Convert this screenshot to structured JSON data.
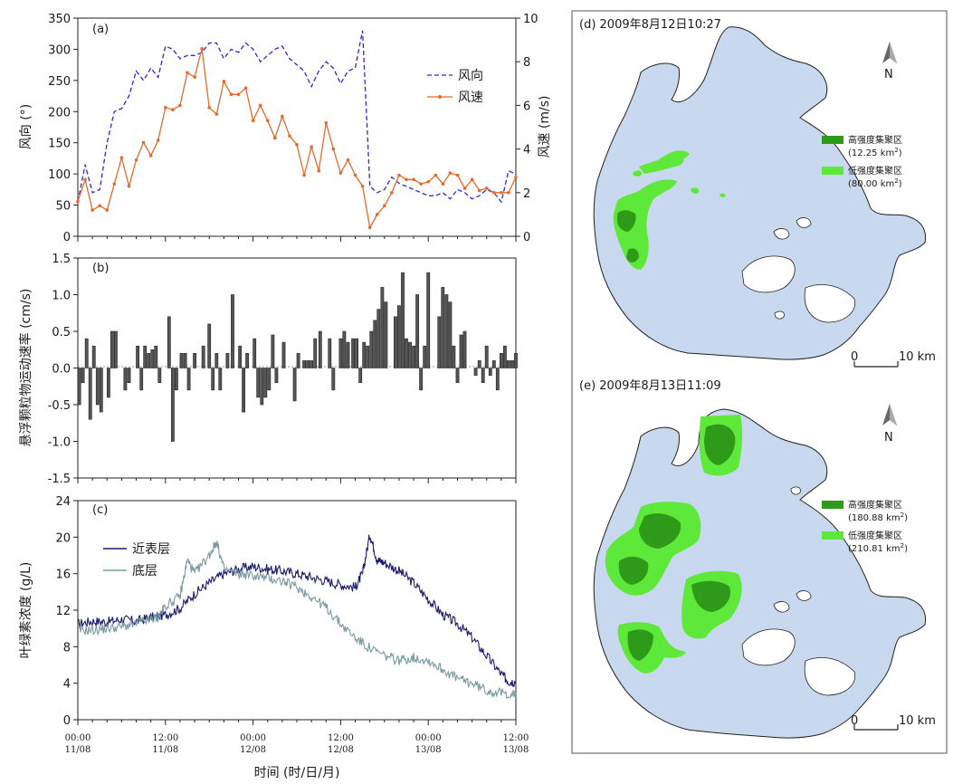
{
  "colors": {
    "wind_dir": "#2a2ad6",
    "wind_speed": "#e8692a",
    "bar_fill": "#555555",
    "near_surface": "#1a1a6e",
    "bottom": "#7a9aa0",
    "lake": "#c8d8ee",
    "high_cluster": "#2e9a1a",
    "low_cluster": "#5ee83a"
  },
  "x_axis": {
    "ticks": [
      {
        "t": "00:00",
        "d": "11/08"
      },
      {
        "t": "12:00",
        "d": "11/08"
      },
      {
        "t": "00:00",
        "d": "12/08"
      },
      {
        "t": "12:00",
        "d": "12/08"
      },
      {
        "t": "00:00",
        "d": "13/08"
      },
      {
        "t": "12:00",
        "d": "13/08"
      }
    ],
    "label": "时间 (时/日/月)"
  },
  "chart_data": [
    {
      "panel": "(a)",
      "type": "line",
      "ylabel": "风向 (°)",
      "ylabel_right": "风速 (m/s)",
      "ylim": [
        0,
        350
      ],
      "ylim_right": [
        0,
        10
      ],
      "yticks": [
        "0",
        "50",
        "100",
        "150",
        "200",
        "250",
        "300",
        "350"
      ],
      "yticks_right": [
        "0",
        "2",
        "4",
        "6",
        "8",
        "10"
      ],
      "x_hours": [
        0,
        60
      ],
      "legend": "right",
      "series": [
        {
          "name": "风向",
          "style": "dashed",
          "axis": "left",
          "x": [
            0,
            1,
            2,
            3,
            4,
            5,
            6,
            7,
            8,
            9,
            10,
            11,
            12,
            13,
            14,
            15,
            16,
            17,
            18,
            19,
            20,
            21,
            22,
            23,
            24,
            25,
            26,
            27,
            28,
            29,
            30,
            31,
            32,
            33,
            34,
            35,
            36,
            37,
            38,
            39,
            40,
            41,
            42,
            42.5,
            43,
            44,
            45,
            46,
            47,
            48,
            49,
            50,
            51,
            52,
            53,
            54,
            55,
            56,
            57,
            58,
            59,
            60
          ],
          "values": [
            55,
            115,
            70,
            75,
            150,
            200,
            205,
            225,
            265,
            250,
            270,
            255,
            305,
            300,
            285,
            290,
            290,
            295,
            310,
            310,
            285,
            300,
            295,
            310,
            300,
            280,
            290,
            300,
            305,
            285,
            275,
            265,
            240,
            265,
            280,
            270,
            245,
            265,
            270,
            330,
            80,
            70,
            75,
            85,
            95,
            85,
            80,
            75,
            70,
            65,
            65,
            70,
            60,
            75,
            70,
            60,
            65,
            75,
            70,
            55,
            105,
            100
          ]
        },
        {
          "name": "风速",
          "style": "solid-marker",
          "axis": "right",
          "x": [
            0,
            1,
            2,
            3,
            4,
            5,
            6,
            7,
            8,
            9,
            10,
            11,
            12,
            13,
            14,
            15,
            16,
            17,
            18,
            19,
            20,
            21,
            22,
            23,
            24,
            25,
            26,
            27,
            28,
            29,
            30,
            31,
            32,
            33,
            34,
            35,
            36,
            37,
            38,
            39,
            40,
            41,
            42,
            43,
            44,
            45,
            46,
            47,
            48,
            49,
            50,
            51,
            52,
            53,
            54,
            55,
            56,
            57,
            58,
            59,
            60
          ],
          "values": [
            1.6,
            2.6,
            1.2,
            1.4,
            1.2,
            2.4,
            3.6,
            2.3,
            3.5,
            4.3,
            3.7,
            4.4,
            5.9,
            5.8,
            6.0,
            7.5,
            7.3,
            8.6,
            5.9,
            5.6,
            7.1,
            6.5,
            6.5,
            6.8,
            5.3,
            6.0,
            5.3,
            4.5,
            5.5,
            4.6,
            4.2,
            2.8,
            4.1,
            3.0,
            5.2,
            4.0,
            2.9,
            3.5,
            2.8,
            2.3,
            0.4,
            1.0,
            1.4,
            2.0,
            2.8,
            2.6,
            2.6,
            2.4,
            2.5,
            2.8,
            2.4,
            2.9,
            2.8,
            2.2,
            2.6,
            2.1,
            2.2,
            2.0,
            2.0,
            2.0,
            2.7
          ]
        }
      ]
    },
    {
      "panel": "(b)",
      "type": "bar",
      "ylabel": "悬浮颗粒物运动速率 (cm/s)",
      "ylim": [
        -1.5,
        1.5
      ],
      "yticks": [
        "-1.5",
        "-1.0",
        "-0.5",
        "0.0",
        "0.5",
        "1.0",
        "1.5"
      ],
      "x_hours": [
        0,
        60
      ],
      "x": [
        0.2,
        0.7,
        1.2,
        1.7,
        2.2,
        2.7,
        3.2,
        4.2,
        4.7,
        5.2,
        6.5,
        7.0,
        8.2,
        8.7,
        9.2,
        9.7,
        10.2,
        10.7,
        11.2,
        12.5,
        13.0,
        13.5,
        14.2,
        14.7,
        15.2,
        16.0,
        17.2,
        18.0,
        18.5,
        19.0,
        19.5,
        20.5,
        21.2,
        22.2,
        22.7,
        23.2,
        24.2,
        24.7,
        25.2,
        25.7,
        26.2,
        26.7,
        27.2,
        28.2,
        29.7,
        30.2,
        31.0,
        31.5,
        32.0,
        32.5,
        33.2,
        34.5,
        35.0,
        36.0,
        36.5,
        37.0,
        37.7,
        38.2,
        38.7,
        39.2,
        39.7,
        40.2,
        40.7,
        41.2,
        41.7,
        42.2,
        43.5,
        44.0,
        44.5,
        45.0,
        45.5,
        46.0,
        46.5,
        47.0,
        47.5,
        48.0,
        49.5,
        50.0,
        50.5,
        51.0,
        51.5,
        52.0,
        52.5,
        53.0,
        54.5,
        55.0,
        55.5,
        56.0,
        56.5,
        57.0,
        57.5,
        58.0,
        58.5,
        59.0,
        59.5,
        60.0
      ],
      "values": [
        -0.5,
        -0.2,
        0.4,
        -0.7,
        0.3,
        -0.5,
        -0.6,
        -0.4,
        0.5,
        0.5,
        -0.3,
        -0.2,
        0.3,
        -0.3,
        0.3,
        0.2,
        0.25,
        0.3,
        -0.2,
        0.7,
        -1.0,
        -0.3,
        0.2,
        0.2,
        -0.3,
        0.2,
        0.3,
        0.6,
        -0.3,
        0.2,
        -0.3,
        0.2,
        1.0,
        0.3,
        -0.6,
        0.2,
        0.4,
        -0.4,
        -0.5,
        -0.4,
        -0.3,
        0.45,
        -0.2,
        0.35,
        -0.45,
        0.2,
        0.1,
        0.1,
        0.1,
        0.4,
        0.5,
        0.4,
        -0.3,
        0.4,
        0.5,
        0.35,
        0.4,
        0.4,
        -0.2,
        0.35,
        0.3,
        0.5,
        0.65,
        0.8,
        1.1,
        0.9,
        0.7,
        0.85,
        1.3,
        0.4,
        0.35,
        0.3,
        1.0,
        -0.3,
        0.3,
        1.3,
        0.7,
        1.1,
        1.0,
        0.9,
        0.3,
        -0.2,
        0.45,
        0.5,
        -0.1,
        0.1,
        -0.2,
        0.3,
        -0.1,
        0.1,
        -0.3,
        0.2,
        0.3,
        0.1,
        0.1,
        0.2
      ]
    },
    {
      "panel": "(c)",
      "type": "line",
      "ylabel": "叶绿素浓度 (g/L)",
      "ylim": [
        0,
        24
      ],
      "yticks": [
        "0",
        "4",
        "8",
        "12",
        "16",
        "20",
        "24"
      ],
      "x_hours": [
        0,
        60
      ],
      "legend": "top-left",
      "series": [
        {
          "name": "近表层",
          "x": [
            0,
            2,
            4,
            6,
            8,
            10,
            12,
            14,
            16,
            18,
            20,
            22,
            24,
            26,
            28,
            30,
            32,
            34,
            36,
            38,
            39,
            40,
            41,
            42,
            44,
            46,
            48,
            50,
            52,
            54,
            56,
            58,
            59,
            60
          ],
          "values": [
            10.5,
            10.8,
            10.7,
            11.0,
            10.8,
            11.2,
            11.5,
            12.2,
            13.8,
            15.0,
            16.0,
            16.5,
            16.8,
            16.5,
            16.3,
            16.0,
            15.6,
            15.2,
            14.8,
            14.5,
            16.0,
            20.3,
            17.5,
            17.2,
            16.3,
            15.0,
            13.2,
            11.5,
            10.5,
            9.0,
            7.0,
            5.0,
            4.2,
            4.2
          ]
        },
        {
          "name": "底层",
          "x": [
            0,
            2,
            4,
            6,
            8,
            10,
            11,
            12,
            14,
            15,
            16,
            18,
            19,
            20,
            22,
            24,
            26,
            28,
            30,
            32,
            34,
            36,
            38,
            40,
            42,
            44,
            46,
            48,
            50,
            52,
            54,
            56,
            58,
            60
          ],
          "values": [
            9.8,
            9.8,
            10.0,
            10.2,
            10.5,
            11.0,
            11.2,
            12.5,
            13.5,
            17.5,
            16.0,
            18.0,
            19.5,
            16.5,
            16.0,
            15.8,
            15.5,
            15.2,
            14.5,
            13.5,
            12.3,
            10.5,
            9.0,
            7.8,
            7.0,
            6.5,
            6.8,
            6.5,
            5.5,
            4.5,
            4.0,
            3.2,
            2.9,
            2.8
          ]
        }
      ]
    }
  ],
  "maps": [
    {
      "title": "(d) 2009年8月12日10:27",
      "legend": [
        {
          "label": "高强度集聚区",
          "area": "(12.25 km",
          "sup": "2",
          "close": ")"
        },
        {
          "label": "低强度集聚区",
          "area": "(80.00 km",
          "sup": "2",
          "close": ")"
        }
      ],
      "north": "N",
      "scale": {
        "start": "0",
        "end": "10 km"
      }
    },
    {
      "title": "(e) 2009年8月13日11:09",
      "legend": [
        {
          "label": "高强度集聚区",
          "area": "(180.88 km",
          "sup": "2",
          "close": ")"
        },
        {
          "label": "低强度集聚区",
          "area": "(210.81 km",
          "sup": "2",
          "close": ")"
        }
      ],
      "north": "N",
      "scale": {
        "start": "0",
        "end": "10 km"
      }
    }
  ]
}
